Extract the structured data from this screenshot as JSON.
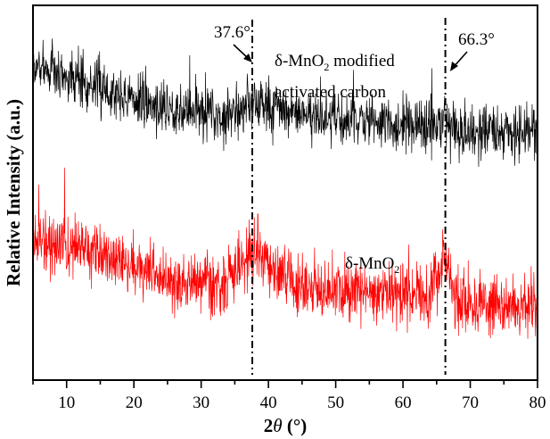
{
  "chart_data": {
    "type": "line",
    "title": "",
    "xlabel_prefix": "2",
    "xlabel_theta": "θ",
    "xlabel_suffix": " (°)",
    "ylabel": "Relative Intensity (a.u.)",
    "xlim": [
      5,
      80
    ],
    "x_ticks": [
      10,
      20,
      30,
      40,
      50,
      60,
      70,
      80
    ],
    "x_tick_labels": [
      "10",
      "20",
      "30",
      "40",
      "50",
      "60",
      "70",
      "80"
    ],
    "x_minor_step": 5,
    "y_ticks": [],
    "grid": false,
    "series": [
      {
        "name": "δ-MnO2 modified activated carbon",
        "color": "#000000",
        "offset": 1.0,
        "baseline": [
          [
            5,
            0.62
          ],
          [
            12,
            0.55
          ],
          [
            20,
            0.44
          ],
          [
            28,
            0.38
          ],
          [
            35,
            0.36
          ],
          [
            38,
            0.4
          ],
          [
            45,
            0.36
          ],
          [
            55,
            0.32
          ],
          [
            65,
            0.3
          ],
          [
            70,
            0.27
          ],
          [
            80,
            0.26
          ]
        ],
        "peaks": [
          {
            "center": 37.6,
            "height": 0.04,
            "width": 2.0
          },
          {
            "center": 66.3,
            "height": 0.04,
            "width": 0.8
          }
        ],
        "noise": 0.14,
        "seed": 7
      },
      {
        "name": "δ-MnO2",
        "color": "#ff0000",
        "offset": 0.0,
        "baseline": [
          [
            5,
            0.7
          ],
          [
            12,
            0.66
          ],
          [
            18,
            0.56
          ],
          [
            25,
            0.48
          ],
          [
            32,
            0.44
          ],
          [
            35,
            0.46
          ],
          [
            40,
            0.52
          ],
          [
            45,
            0.46
          ],
          [
            55,
            0.42
          ],
          [
            62,
            0.4
          ],
          [
            66,
            0.45
          ],
          [
            70,
            0.36
          ],
          [
            80,
            0.33
          ]
        ],
        "peaks": [
          {
            "center": 37.6,
            "height": 0.14,
            "width": 2.4
          },
          {
            "center": 66.3,
            "height": 0.16,
            "width": 1.0
          }
        ],
        "noise": 0.16,
        "seed": 19
      }
    ],
    "reference_lines": [
      {
        "x": 37.6,
        "label": "37.6°",
        "style": "dash-dot"
      },
      {
        "x": 66.3,
        "label": "66.3°",
        "style": "dash-dot"
      }
    ],
    "annotations": [
      {
        "text_main": "δ-MnO",
        "text_sub": "2",
        "text_tail": " modified",
        "line2": "activated carbon",
        "series": "δ-MnO2 modified activated carbon"
      },
      {
        "text_main": "δ-MnO",
        "text_sub": "2",
        "series": "δ-MnO2"
      }
    ]
  }
}
